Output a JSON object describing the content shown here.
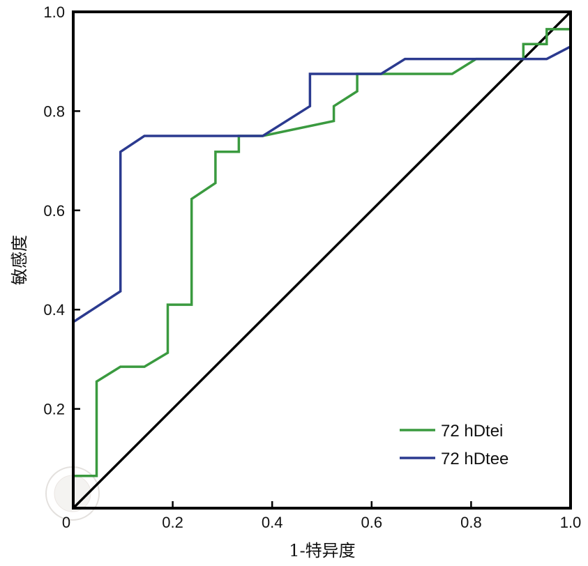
{
  "chart_data": {
    "type": "line",
    "title": "",
    "xlabel": "1-特异度",
    "ylabel": "敏感度",
    "xlim": [
      0,
      1.0
    ],
    "ylim": [
      0,
      1.0
    ],
    "x_ticks": [
      "0",
      "0.2",
      "0.4",
      "0.6",
      "0.8",
      "1.0"
    ],
    "y_ticks": [
      "0.2",
      "0.4",
      "0.6",
      "0.8",
      "1.0"
    ],
    "legend_position": "bottom-right",
    "reference_line": {
      "name": "diagonal",
      "color": "#000000",
      "points": [
        [
          0,
          0
        ],
        [
          1,
          1
        ]
      ]
    },
    "series": [
      {
        "name": "72 hDtei",
        "color": "#3a9a3f",
        "points": [
          [
            0,
            0.065
          ],
          [
            0.047,
            0.065
          ],
          [
            0.047,
            0.255
          ],
          [
            0.095,
            0.285
          ],
          [
            0.143,
            0.285
          ],
          [
            0.19,
            0.313
          ],
          [
            0.19,
            0.41
          ],
          [
            0.238,
            0.41
          ],
          [
            0.238,
            0.623
          ],
          [
            0.286,
            0.655
          ],
          [
            0.286,
            0.718
          ],
          [
            0.333,
            0.718
          ],
          [
            0.333,
            0.75
          ],
          [
            0.381,
            0.75
          ],
          [
            0.524,
            0.78
          ],
          [
            0.524,
            0.81
          ],
          [
            0.571,
            0.84
          ],
          [
            0.571,
            0.875
          ],
          [
            0.762,
            0.875
          ],
          [
            0.81,
            0.905
          ],
          [
            0.905,
            0.905
          ],
          [
            0.905,
            0.905
          ],
          [
            0.905,
            0.935
          ],
          [
            0.952,
            0.935
          ],
          [
            0.952,
            0.965
          ],
          [
            1.0,
            0.965
          ]
        ]
      },
      {
        "name": "72 hDtee",
        "color": "#2b3a8f",
        "points": [
          [
            0,
            0.375
          ],
          [
            0.095,
            0.437
          ],
          [
            0.095,
            0.718
          ],
          [
            0.143,
            0.75
          ],
          [
            0.381,
            0.75
          ],
          [
            0.476,
            0.81
          ],
          [
            0.476,
            0.875
          ],
          [
            0.619,
            0.875
          ],
          [
            0.667,
            0.905
          ],
          [
            0.952,
            0.905
          ],
          [
            1.0,
            0.93
          ]
        ]
      }
    ]
  }
}
